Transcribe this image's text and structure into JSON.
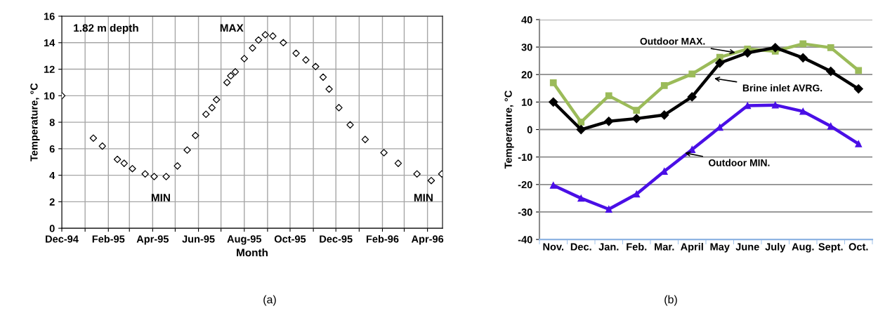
{
  "chart_data": [
    {
      "type": "scatter",
      "xlabel": "Month",
      "ylabel": "Temperature, °C",
      "marker": "diamond",
      "grid": true,
      "legend": false,
      "xlim": [
        "1994-12-01",
        "1996-04-21"
      ],
      "ylim": [
        0,
        16
      ],
      "yticks": [
        0,
        2,
        4,
        6,
        8,
        10,
        12,
        14,
        16
      ],
      "xticks": [
        {
          "value": "1994-12-01",
          "label": "Dec-94"
        },
        {
          "value": "1995-01-01",
          "label": null
        },
        {
          "value": "1995-02-01",
          "label": "Feb-95"
        },
        {
          "value": "1995-03-01",
          "label": null
        },
        {
          "value": "1995-04-01",
          "label": "Apr-95"
        },
        {
          "value": "1995-05-01",
          "label": null
        },
        {
          "value": "1995-06-01",
          "label": "Jun-95"
        },
        {
          "value": "1995-07-01",
          "label": null
        },
        {
          "value": "1995-08-01",
          "label": "Aug-95"
        },
        {
          "value": "1995-09-01",
          "label": null
        },
        {
          "value": "1995-10-01",
          "label": "Oct-95"
        },
        {
          "value": "1995-11-01",
          "label": null
        },
        {
          "value": "1995-12-01",
          "label": "Dec-95"
        },
        {
          "value": "1996-01-01",
          "label": null
        },
        {
          "value": "1996-02-01",
          "label": "Feb-96"
        },
        {
          "value": "1996-03-01",
          "label": null
        },
        {
          "value": "1996-04-01",
          "label": "Apr-96"
        }
      ],
      "series": [
        {
          "color": "#000000",
          "x": [
            "1994-12-01",
            "1995-01-12",
            "1995-01-24",
            "1995-02-13",
            "1995-02-22",
            "1995-03-05",
            "1995-03-22",
            "1995-04-03",
            "1995-04-19",
            "1995-05-04",
            "1995-05-17",
            "1995-05-28",
            "1995-06-11",
            "1995-06-19",
            "1995-06-25",
            "1995-07-09",
            "1995-07-14",
            "1995-07-20",
            "1995-08-01",
            "1995-08-12",
            "1995-08-20",
            "1995-08-29",
            "1995-09-08",
            "1995-09-22",
            "1995-10-09",
            "1995-10-22",
            "1995-11-04",
            "1995-11-14",
            "1995-11-22",
            "1995-12-05",
            "1995-12-20",
            "1996-01-09",
            "1996-02-03",
            "1996-02-22",
            "1996-03-18",
            "1996-04-06",
            "1996-04-20"
          ],
          "values": [
            10.0,
            6.8,
            6.2,
            5.2,
            4.9,
            4.5,
            4.1,
            3.9,
            3.9,
            4.7,
            5.9,
            7.0,
            8.6,
            9.1,
            9.7,
            11.0,
            11.5,
            11.8,
            12.8,
            13.6,
            14.2,
            14.6,
            14.5,
            14.0,
            13.2,
            12.7,
            12.2,
            11.4,
            10.5,
            9.1,
            7.8,
            6.7,
            5.7,
            4.9,
            4.1,
            3.6,
            4.1
          ]
        }
      ],
      "annotations": [
        "1.82 m depth",
        "MAX",
        "MIN",
        "MIN",
        "(a)"
      ]
    },
    {
      "type": "line",
      "ylabel": "Temperature, °C",
      "grid": "y",
      "legend": false,
      "line_style": "solid",
      "categories": [
        "Nov.",
        "Dec.",
        "Jan.",
        "Feb.",
        "Mar.",
        "April",
        "May",
        "June",
        "July",
        "Aug.",
        "Sept.",
        "Oct."
      ],
      "ylim": [
        -40,
        40
      ],
      "yticks": [
        -40,
        -30,
        -20,
        -10,
        0,
        10,
        20,
        30,
        40
      ],
      "series": [
        {
          "name": "Outdoor MAX.",
          "color": "#9bbb59",
          "marker": "square",
          "values": [
            17,
            2.7,
            12.3,
            7,
            16,
            20.2,
            26.3,
            29.3,
            28.5,
            31.2,
            29.8,
            21.5
          ]
        },
        {
          "name": "Brine inlet AVRG.",
          "color": "#000000",
          "marker": "diamond",
          "values": [
            10,
            0,
            3,
            4,
            5.3,
            11.9,
            24.2,
            27.9,
            29.8,
            26.1,
            21.2,
            14.8
          ]
        },
        {
          "name": "Outdoor MIN.",
          "color": "#4a0fe6",
          "marker": "triangle",
          "values": [
            -20.3,
            -25,
            -29,
            -23.5,
            -15.2,
            -7.3,
            0.8,
            8.7,
            8.9,
            6.6,
            1.2,
            -5.2
          ]
        }
      ],
      "annotations": [
        "(b)"
      ]
    }
  ]
}
